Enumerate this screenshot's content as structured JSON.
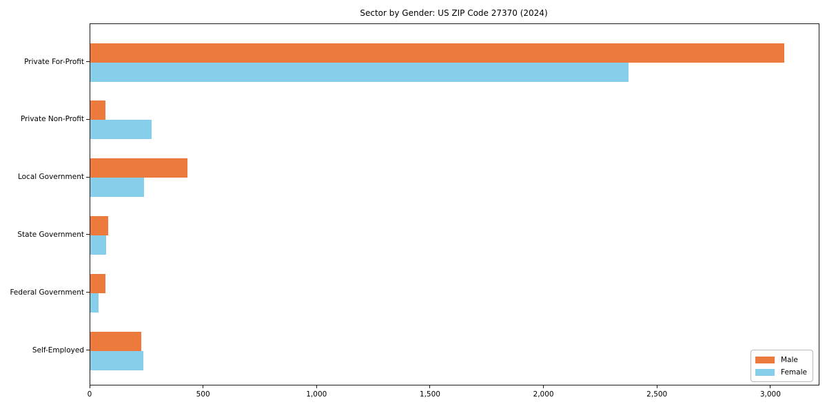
{
  "chart_data": {
    "type": "bar",
    "orientation": "horizontal",
    "title": "Sector by Gender: US ZIP Code 27370 (2024)",
    "xlabel": "",
    "ylabel": "",
    "categories": [
      "Private For-Profit",
      "Private Non-Profit",
      "Local Government",
      "State Government",
      "Federal Government",
      "Self-Employed"
    ],
    "series": [
      {
        "name": "Male",
        "color": "#EC7A3C",
        "values": [
          3057,
          68,
          429,
          79,
          68,
          225
        ]
      },
      {
        "name": "Female",
        "color": "#87CEEB",
        "values": [
          2372,
          271,
          236,
          71,
          37,
          233
        ]
      }
    ],
    "xlim": [
      0,
      3210
    ],
    "x_ticks": [
      0,
      500,
      1000,
      1500,
      2000,
      2500,
      3000
    ],
    "x_tick_labels": [
      "0",
      "500",
      "1,000",
      "1,500",
      "2,000",
      "2,500",
      "3,000"
    ],
    "grid": false,
    "legend": {
      "position": "lower right",
      "entries": [
        "Male",
        "Female"
      ]
    }
  }
}
